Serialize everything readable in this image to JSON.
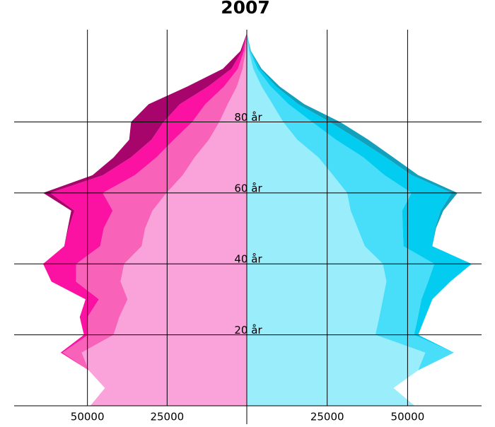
{
  "chart_data": {
    "type": "population-pyramid",
    "title": "2007",
    "y": [
      0,
      5,
      10,
      15,
      20,
      25,
      30,
      35,
      40,
      45,
      50,
      55,
      60,
      65,
      70,
      75,
      80,
      85,
      90,
      95,
      100,
      105
    ],
    "ylim": [
      0,
      106
    ],
    "yticks": [
      {
        "value": 20,
        "label": "20 år"
      },
      {
        "value": 40,
        "label": "40 år"
      },
      {
        "value": 60,
        "label": "60 år"
      },
      {
        "value": 80,
        "label": "80 år"
      }
    ],
    "left": {
      "xlim": [
        0,
        73000
      ],
      "xticks": [
        25000,
        50000
      ],
      "series": [
        {
          "color": "#f9a3da",
          "values": [
            49100,
            44500,
            49600,
            51800,
            41800,
            40000,
            37400,
            39600,
            38500,
            33000,
            31900,
            29600,
            25200,
            20100,
            16400,
            11900,
            8600,
            6000,
            3100,
            1300,
            400,
            0
          ]
        },
        {
          "color": "#f862b8",
          "values": [
            0,
            0,
            0,
            6000,
            8000,
            10000,
            9000,
            14000,
            15000,
            13000,
            13000,
            12500,
            20000,
            15000,
            12000,
            11000,
            8500,
            7000,
            4000,
            1500,
            500,
            0
          ]
        },
        {
          "color": "#fc12a2",
          "values": [
            0,
            0,
            0,
            600,
            1300,
            2400,
            4200,
            7700,
            10400,
            11300,
            11000,
            12000,
            16500,
            10000,
            8000,
            7000,
            9000,
            8000,
            5000,
            2000,
            600,
            0
          ]
        },
        {
          "color": "#a8056c",
          "values": [
            0,
            0,
            0,
            0,
            0,
            0,
            0,
            0,
            0,
            0,
            300,
            1000,
            2200,
            3300,
            5400,
            7000,
            10200,
            9800,
            6500,
            2700,
            500,
            0
          ]
        }
      ]
    },
    "right": {
      "xlim": [
        0,
        73000
      ],
      "xticks": [
        25000,
        50000
      ],
      "series": [
        {
          "color": "#9aedfb",
          "values": [
            52200,
            45600,
            53300,
            55500,
            40000,
            41200,
            42300,
            43400,
            42300,
            36700,
            34500,
            32300,
            31200,
            26800,
            22300,
            15700,
            11300,
            8000,
            4600,
            2000,
            700,
            0
          ]
        },
        {
          "color": "#48ddf9",
          "values": [
            0,
            0,
            0,
            8900,
            12000,
            12000,
            12000,
            13000,
            16000,
            12000,
            14000,
            16000,
            20000,
            16000,
            14000,
            12000,
            9000,
            5000,
            2800,
            1300,
            300,
            0
          ]
        },
        {
          "color": "#02cdf0",
          "values": [
            0,
            0,
            0,
            0,
            1300,
            2300,
            3400,
            6900,
            11600,
            9000,
            10000,
            12000,
            12500,
            8500,
            7000,
            7000,
            5500,
            3000,
            1700,
            800,
            200,
            0
          ]
        },
        {
          "color": "#12a1bd",
          "values": [
            0,
            0,
            0,
            0,
            0,
            0,
            0,
            0,
            0,
            0,
            300,
            800,
            1800,
            2000,
            2300,
            3100,
            3200,
            1900,
            1100,
            500,
            100,
            0
          ]
        }
      ]
    }
  }
}
